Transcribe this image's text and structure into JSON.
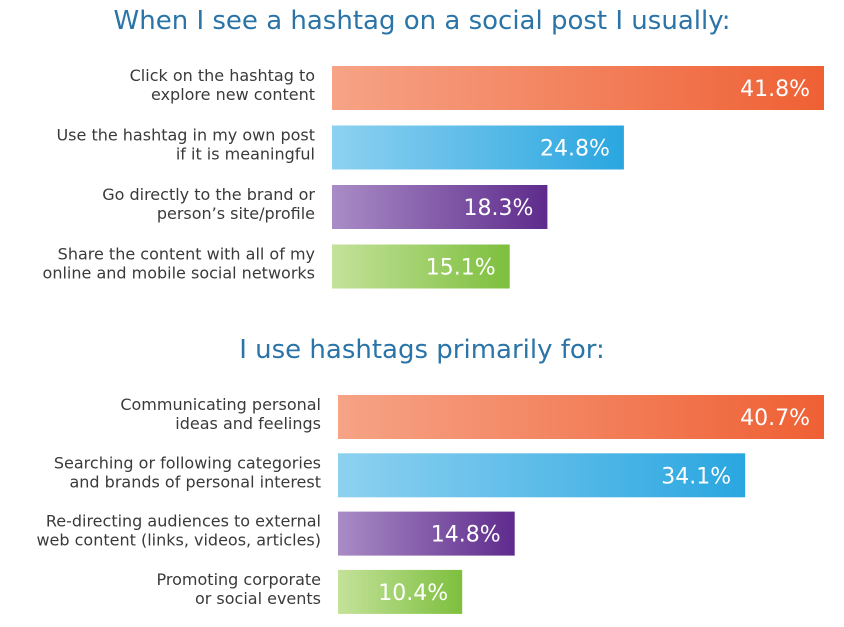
{
  "chart_data": [
    {
      "type": "bar",
      "orientation": "horizontal",
      "title": "When I see a hashtag on a social post I usually:",
      "categories": [
        [
          "Click on the hashtag to",
          "explore new content"
        ],
        [
          "Use the hashtag in my own post",
          "if it is meaningful"
        ],
        [
          "Go directly to the brand or",
          "person’s site/profile"
        ],
        [
          "Share the content with all of my",
          "online and mobile social networks"
        ]
      ],
      "values": [
        41.8,
        24.8,
        18.3,
        15.1
      ],
      "value_labels": [
        "41.8%",
        "24.8%",
        "18.3%",
        "15.1%"
      ],
      "colors": [
        [
          "#f6a386",
          "#ef6034"
        ],
        [
          "#8dd1f0",
          "#2aa6e0"
        ],
        [
          "#a98cc6",
          "#5e2b8c"
        ],
        [
          "#c4e29a",
          "#7dbf3e"
        ]
      ],
      "ylim": [
        0,
        41.8
      ],
      "grid": false
    },
    {
      "type": "bar",
      "orientation": "horizontal",
      "title": "I use hashtags primarily for:",
      "categories": [
        [
          "Communicating personal",
          "ideas and feelings"
        ],
        [
          "Searching or following categories",
          "and brands of personal interest"
        ],
        [
          "Re-directing audiences to external",
          "web content (links, videos, articles)"
        ],
        [
          "Promoting corporate",
          "or social events"
        ]
      ],
      "values": [
        40.7,
        34.1,
        14.8,
        10.4
      ],
      "value_labels": [
        "40.7%",
        "34.1%",
        "14.8%",
        "10.4%"
      ],
      "colors": [
        [
          "#f6a386",
          "#ef6034"
        ],
        [
          "#8dd1f0",
          "#2aa6e0"
        ],
        [
          "#a98cc6",
          "#5e2b8c"
        ],
        [
          "#c4e29a",
          "#7dbf3e"
        ]
      ],
      "ylim": [
        0,
        40.7
      ],
      "grid": false
    }
  ]
}
